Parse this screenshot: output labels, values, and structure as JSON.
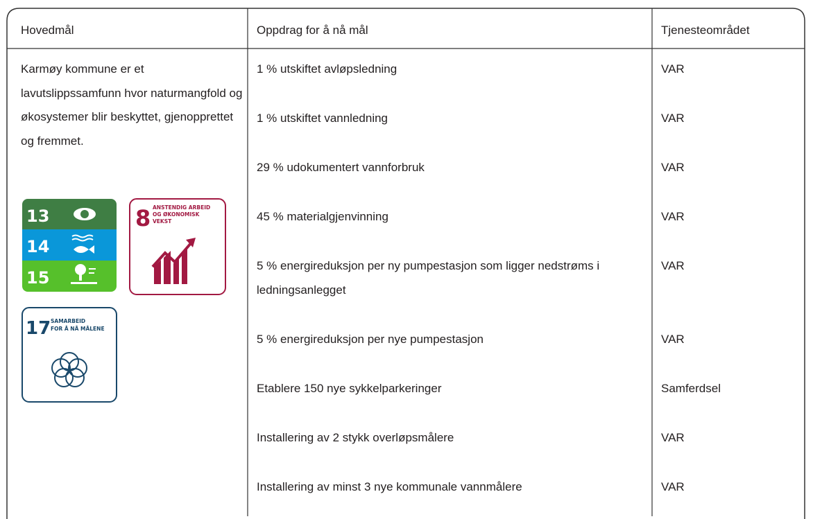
{
  "table": {
    "headers": [
      "Hovedmål",
      "Oppdrag for å nå mål",
      "Tjenesteområdet"
    ],
    "goal": "Karmøy kommune er et lavutslippssamfunn hvor naturmangfold og økosystemer blir beskyttet, gjenopprettet og fremmet.",
    "rows": [
      [
        "1 % utskiftet avløpsledning",
        "VAR"
      ],
      [
        "1 % utskiftet vannledning",
        "VAR"
      ],
      [
        "29 % udokumentert vannforbruk",
        "VAR"
      ],
      [
        "45 % materialgjenvinning",
        "VAR"
      ],
      [
        "5 % energireduksjon per ny pumpestasjon som ligger nedstrøms i ledningsanlegget",
        "VAR"
      ],
      [
        "5 % energireduksjon per nye pumpestasjon",
        "VAR"
      ],
      [
        "Etablere 150 nye sykkelparkeringer",
        "Samferdsel"
      ],
      [
        "Installering av 2 stykk overløpsmålere",
        "VAR"
      ],
      [
        "Installering av minst 3 nye kommunale vannmålere",
        "VAR"
      ]
    ]
  },
  "sdg": {
    "stack": [
      "13",
      "14",
      "15"
    ],
    "goal8": {
      "number": "8",
      "lines": [
        "ANSTENDIG ARBEID",
        "OG ØKONOMISK",
        "VEKST"
      ]
    },
    "goal17": {
      "number": "17",
      "lines": [
        "SAMARBEID",
        "FOR Å NÅ MÅLENE"
      ]
    }
  }
}
